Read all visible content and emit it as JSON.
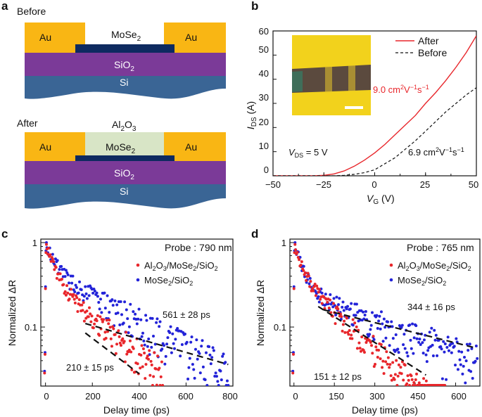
{
  "panel_labels": {
    "a": "a",
    "b": "b",
    "c": "c",
    "d": "d"
  },
  "colors": {
    "au": "#f9b614",
    "mose2": "#0e2a60",
    "sio2": "#7b3a98",
    "si": "#3a6595",
    "al2o3": "#d8e5c6",
    "red": "#e8262b",
    "blue": "#2323d8",
    "black": "#111111",
    "inset_yellow": "#f2d21c",
    "inset_flake": "#5b4a3e"
  },
  "panel_a": {
    "before": {
      "title": "Before",
      "au_left": "Au",
      "au_right": "Au",
      "mose2": "MoSe",
      "mose2_sub": "2",
      "sio2": "SiO",
      "sio2_sub": "2",
      "si": "Si"
    },
    "after": {
      "title": "After",
      "au_left": "Au",
      "au_right": "Au",
      "al2o3_a": "Al",
      "al2o3_sub1": "2",
      "al2o3_b": "O",
      "al2o3_sub2": "3",
      "mose2": "MoSe",
      "mose2_sub": "2",
      "sio2": "SiO",
      "sio2_sub": "2",
      "si": "Si"
    }
  },
  "panel_b": {
    "ylabel_main": "I",
    "ylabel_sub": "DS",
    "ylabel_unit": " (A)",
    "xlabel_main": "V",
    "xlabel_sub": "G",
    "xlabel_unit": " (V)",
    "xticks": [
      "−50",
      "−25",
      "0",
      "25",
      "50"
    ],
    "yticks": [
      "0",
      "10",
      "20",
      "30",
      "40",
      "50",
      "60"
    ],
    "legend_after": "After",
    "legend_before": "Before",
    "mob_after_value": "9.0 cm",
    "mob_after_unit_a": "V",
    "mob_after_exp1": "2",
    "mob_after_exp2": "−1",
    "mob_after_unit_b": "s",
    "mob_after_exp3": "−1",
    "mob_before_value": "6.9 cm",
    "mob_before_unit_a": "V",
    "mob_before_exp1": "2",
    "mob_before_exp2": "−1",
    "mob_before_unit_b": "s",
    "mob_before_exp3": "−1",
    "vds_main": "V",
    "vds_sub": "DS",
    "vds_value": " = 5 V"
  },
  "panel_c": {
    "probe": "Probe : 790 nm",
    "legend_red_a": "Al",
    "legend_red_s1": "2",
    "legend_red_b": "O",
    "legend_red_s2": "3",
    "legend_red_c": "/MoSe",
    "legend_red_s3": "2",
    "legend_red_d": "/SiO",
    "legend_red_s4": "2",
    "legend_blue_a": "MoSe",
    "legend_blue_s1": "2",
    "legend_blue_b": "/SiO",
    "legend_blue_s2": "2",
    "tau_blue": "561 ± 28 ps",
    "tau_red": "210 ± 15 ps",
    "ylabel": "Normalized ΔR",
    "xlabel": "Delay time (ps)",
    "xticks": [
      "0",
      "200",
      "400",
      "600",
      "800"
    ],
    "yticks": [
      "1",
      "0.1"
    ]
  },
  "panel_d": {
    "probe": "Probe : 765 nm",
    "legend_red_a": "Al",
    "legend_red_s1": "2",
    "legend_red_b": "O",
    "legend_red_s2": "3",
    "legend_red_c": "/MoSe",
    "legend_red_s3": "2",
    "legend_red_d": "/SiO",
    "legend_red_s4": "2",
    "legend_blue_a": "MoSe",
    "legend_blue_s1": "2",
    "legend_blue_b": "/SiO",
    "legend_blue_s2": "2",
    "tau_blue": "344 ± 16 ps",
    "tau_red": "151 ± 12 ps",
    "ylabel": "Normalized ΔR",
    "xlabel": "Delay time (ps)",
    "xticks": [
      "0",
      "150",
      "300",
      "450",
      "600"
    ],
    "yticks": [
      "1",
      "0.1"
    ]
  },
  "chart_data": [
    {
      "type": "line",
      "panel": "b",
      "xlabel": "VG (V)",
      "ylabel": "IDS (A)",
      "xlim": [
        -50,
        50
      ],
      "ylim": [
        0,
        60
      ],
      "series": [
        {
          "name": "After",
          "style": "solid",
          "color": "#e8262b",
          "x": [
            -50,
            -30,
            -25,
            -20,
            -15,
            -10,
            -5,
            0,
            5,
            10,
            15,
            20,
            25,
            30,
            35,
            40,
            45,
            50
          ],
          "y": [
            0,
            0,
            0.2,
            0.8,
            2,
            4,
            6.5,
            9.5,
            13,
            17,
            21,
            25,
            30,
            34.5,
            39.5,
            45,
            51,
            58
          ]
        },
        {
          "name": "Before",
          "style": "dashed",
          "color": "#111111",
          "x": [
            -50,
            -20,
            -15,
            -10,
            -5,
            0,
            5,
            10,
            15,
            20,
            25,
            30,
            35,
            40,
            45,
            50
          ],
          "y": [
            0,
            0,
            0.2,
            0.6,
            1.3,
            2.5,
            5,
            7.5,
            11,
            14.5,
            18.5,
            22.5,
            26.5,
            30,
            33.5,
            36.5
          ]
        }
      ],
      "annotations": [
        "9.0 cm2V-1s-1",
        "6.9 cm2V-1s-1",
        "VDS = 5 V"
      ]
    },
    {
      "type": "scatter",
      "panel": "c",
      "yscale": "log",
      "xlabel": "Delay time (ps)",
      "ylabel": "Normalized ΔR",
      "xlim": [
        -20,
        800
      ],
      "ylim": [
        0.02,
        1.1
      ],
      "series": [
        {
          "name": "MoSe2/SiO2",
          "color": "#2323d8",
          "model": "biexponential",
          "a1": 0.55,
          "tau1": 40,
          "a2": 0.45,
          "tau2": 290,
          "x_max": 780,
          "n": 190
        },
        {
          "name": "Al2O3/MoSe2/SiO2",
          "color": "#e8262b",
          "model": "biexponential",
          "a1": 0.65,
          "tau1": 35,
          "a2": 0.35,
          "tau2": 200,
          "x_max": 500,
          "n": 140
        }
      ],
      "fits": [
        {
          "name": "561 ± 28 ps",
          "x": [
            170,
            780
          ],
          "y": [
            0.11,
            0.036
          ]
        },
        {
          "name": "210 ± 15 ps",
          "x": [
            170,
            400
          ],
          "y": [
            0.085,
            0.028
          ]
        }
      ]
    },
    {
      "type": "scatter",
      "panel": "d",
      "yscale": "log",
      "xlabel": "Delay time (ps)",
      "ylabel": "Normalized ΔR",
      "xlim": [
        -15,
        690
      ],
      "ylim": [
        0.02,
        1.1
      ],
      "series": [
        {
          "name": "MoSe2/SiO2",
          "color": "#2323d8",
          "model": "biexponential",
          "a1": 0.72,
          "tau1": 30,
          "a2": 0.28,
          "tau2": 340,
          "x_max": 680,
          "n": 200
        },
        {
          "name": "Al2O3/MoSe2/SiO2",
          "color": "#e8262b",
          "model": "biexponential",
          "a1": 0.6,
          "tau1": 28,
          "a2": 0.4,
          "tau2": 150,
          "x_max": 560,
          "n": 170
        }
      ],
      "fits": [
        {
          "name": "344 ± 16 ps",
          "x": [
            110,
            680
          ],
          "y": [
            0.16,
            0.056
          ]
        },
        {
          "name": "151 ± 12 ps",
          "x": [
            90,
            490
          ],
          "y": [
            0.175,
            0.027
          ]
        }
      ]
    }
  ]
}
